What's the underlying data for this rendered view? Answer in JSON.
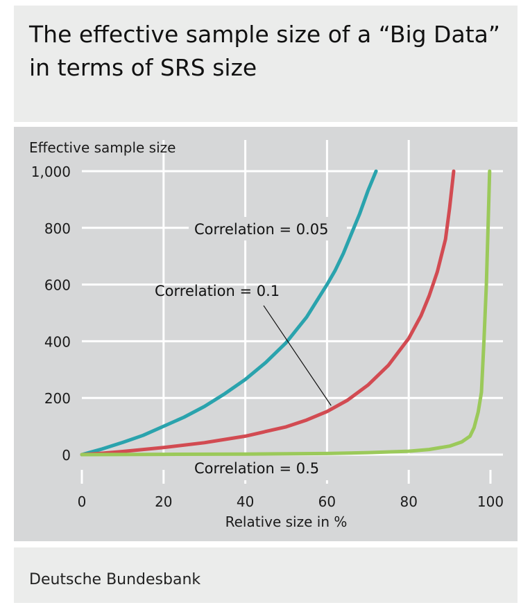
{
  "title": "The effective sample size of a “Big Data” in terms of SRS size",
  "source": "Deutsche Bundesbank",
  "colors": {
    "series_0_05": "#2aa3ad",
    "series_0_1": "#d24b52",
    "series_0_5": "#9bc95a",
    "panel_background": "#d6d7d8",
    "grid": "#ffffff"
  },
  "chart_data": {
    "type": "line",
    "ylabel": "Effective sample size",
    "xlabel": "Relative size in %",
    "xlim": [
      0,
      100
    ],
    "ylim": [
      0,
      1000
    ],
    "x_ticks": [
      0,
      20,
      40,
      60,
      80,
      100
    ],
    "x_tick_labels": [
      "0",
      "20",
      "40",
      "60",
      "80",
      "100"
    ],
    "y_ticks": [
      0,
      200,
      400,
      600,
      800,
      1000
    ],
    "y_tick_labels": [
      "0",
      "200",
      "400",
      "600",
      "800",
      "1,000"
    ],
    "grid": true,
    "series": [
      {
        "name": "Correlation = 0.05",
        "color": "#2aa3ad",
        "x": [
          0,
          5,
          10,
          15,
          20,
          25,
          30,
          35,
          40,
          45,
          50,
          55,
          60,
          62,
          64,
          66,
          68,
          70,
          72
        ],
        "y": [
          0,
          20,
          43,
          68,
          100,
          132,
          170,
          215,
          265,
          325,
          395,
          485,
          600,
          650,
          710,
          780,
          850,
          930,
          1000
        ]
      },
      {
        "name": "Correlation = 0.1",
        "color": "#d24b52",
        "x": [
          0,
          5,
          10,
          20,
          30,
          40,
          50,
          55,
          60,
          65,
          70,
          75,
          80,
          83,
          85,
          87,
          89,
          90,
          91
        ],
        "y": [
          0,
          5,
          11,
          25,
          42,
          65,
          98,
          122,
          152,
          192,
          245,
          315,
          410,
          490,
          560,
          645,
          760,
          870,
          1000
        ]
      },
      {
        "name": "Correlation = 0.5",
        "color": "#9bc95a",
        "x": [
          0,
          20,
          40,
          60,
          70,
          80,
          85,
          90,
          93,
          95,
          96,
          97,
          97.8,
          98.4,
          99,
          99.4,
          99.8
        ],
        "y": [
          0,
          1,
          2,
          4,
          7,
          12,
          18,
          30,
          45,
          65,
          95,
          150,
          220,
          400,
          600,
          800,
          1000
        ]
      }
    ],
    "annotations": [
      {
        "text": "Correlation = 0.05",
        "series": "Correlation = 0.05"
      },
      {
        "text": "Correlation = 0.1",
        "series": "Correlation = 0.1"
      },
      {
        "text": "Correlation = 0.5",
        "series": "Correlation = 0.5"
      }
    ]
  }
}
